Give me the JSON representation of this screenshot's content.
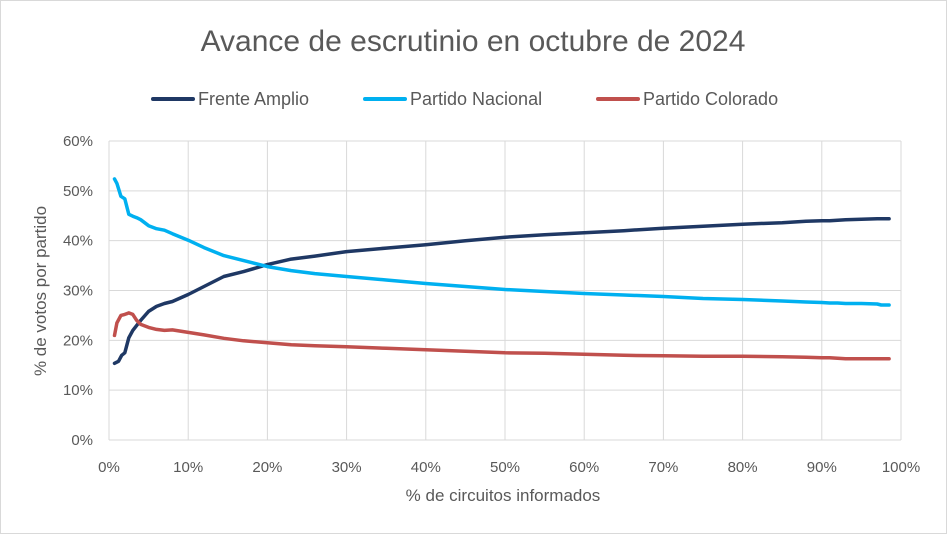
{
  "chart_data": {
    "type": "line",
    "title": "Avance de escrutinio en octubre de 2024",
    "xlabel": "% de circuitos informados",
    "ylabel": "% de votos por partido",
    "xlim": [
      0,
      100
    ],
    "ylim": [
      0,
      60
    ],
    "xticks": [
      0,
      10,
      20,
      30,
      40,
      50,
      60,
      70,
      80,
      90,
      100
    ],
    "yticks": [
      0,
      10,
      20,
      30,
      40,
      50,
      60
    ],
    "x_tick_labels": [
      "0%",
      "10%",
      "20%",
      "30%",
      "40%",
      "50%",
      "60%",
      "70%",
      "80%",
      "90%",
      "100%"
    ],
    "y_tick_labels": [
      "0%",
      "10%",
      "20%",
      "30%",
      "40%",
      "50%",
      "60%"
    ],
    "grid": true,
    "legend_position": "top",
    "series": [
      {
        "name": "Frente Amplio",
        "color": "#1f3864",
        "x": [
          0.7,
          1.2,
          1.6,
          2.0,
          2.5,
          3.0,
          3.5,
          4.0,
          5.0,
          6.0,
          7.0,
          8.0,
          10.0,
          12.0,
          14.5,
          17.0,
          20.0,
          23.0,
          26.0,
          30.0,
          35.0,
          40.0,
          45.0,
          50.0,
          55.0,
          60.0,
          65.0,
          70.0,
          75.0,
          80.0,
          85.0,
          88.0,
          90.0,
          91.0,
          93.0,
          95.0,
          97.0,
          98.5
        ],
        "values": [
          15.4,
          15.8,
          17.0,
          17.5,
          20.5,
          22.0,
          23.0,
          24.0,
          25.8,
          26.8,
          27.4,
          27.8,
          29.2,
          30.8,
          32.8,
          33.8,
          35.2,
          36.3,
          36.9,
          37.8,
          38.5,
          39.2,
          40.0,
          40.7,
          41.2,
          41.6,
          42.0,
          42.5,
          42.9,
          43.3,
          43.6,
          43.9,
          44.0,
          44.0,
          44.2,
          44.3,
          44.4,
          44.4
        ]
      },
      {
        "name": "Partido Nacional",
        "color": "#00b0f0",
        "x": [
          0.7,
          1.0,
          1.5,
          2.0,
          2.5,
          3.0,
          3.5,
          4.0,
          5.0,
          6.0,
          7.0,
          8.0,
          10.0,
          12.0,
          14.5,
          17.0,
          20.0,
          23.0,
          26.0,
          30.0,
          35.0,
          40.0,
          45.0,
          50.0,
          55.0,
          60.0,
          65.0,
          70.0,
          75.0,
          80.0,
          85.0,
          88.0,
          90.0,
          91.0,
          92.0,
          93.0,
          95.0,
          97.0,
          97.5,
          98.5
        ],
        "values": [
          52.4,
          51.5,
          48.9,
          48.4,
          45.3,
          44.9,
          44.6,
          44.2,
          43.0,
          42.4,
          42.1,
          41.4,
          40.1,
          38.6,
          37.0,
          36.0,
          34.8,
          34.0,
          33.4,
          32.8,
          32.1,
          31.4,
          30.8,
          30.2,
          29.8,
          29.4,
          29.1,
          28.8,
          28.4,
          28.2,
          27.9,
          27.7,
          27.6,
          27.5,
          27.5,
          27.4,
          27.4,
          27.3,
          27.1,
          27.1
        ]
      },
      {
        "name": "Partido Colorado",
        "color": "#c0504d",
        "x": [
          0.7,
          1.0,
          1.5,
          2.0,
          2.5,
          3.0,
          3.5,
          4.0,
          5.0,
          6.0,
          7.0,
          8.0,
          10.0,
          12.0,
          14.5,
          17.0,
          20.0,
          23.0,
          26.0,
          30.0,
          35.0,
          40.0,
          45.0,
          50.0,
          55.0,
          60.0,
          65.0,
          70.0,
          75.0,
          80.0,
          85.0,
          88.0,
          90.0,
          91.0,
          92.0,
          93.0,
          95.0,
          97.0,
          98.5
        ],
        "values": [
          21.0,
          23.5,
          25.0,
          25.2,
          25.5,
          25.2,
          24.0,
          23.2,
          22.6,
          22.2,
          22.0,
          22.1,
          21.6,
          21.1,
          20.4,
          19.9,
          19.5,
          19.1,
          18.9,
          18.7,
          18.4,
          18.1,
          17.8,
          17.5,
          17.4,
          17.2,
          17.0,
          16.9,
          16.8,
          16.8,
          16.7,
          16.6,
          16.5,
          16.5,
          16.4,
          16.3,
          16.3,
          16.3,
          16.3
        ]
      }
    ]
  }
}
